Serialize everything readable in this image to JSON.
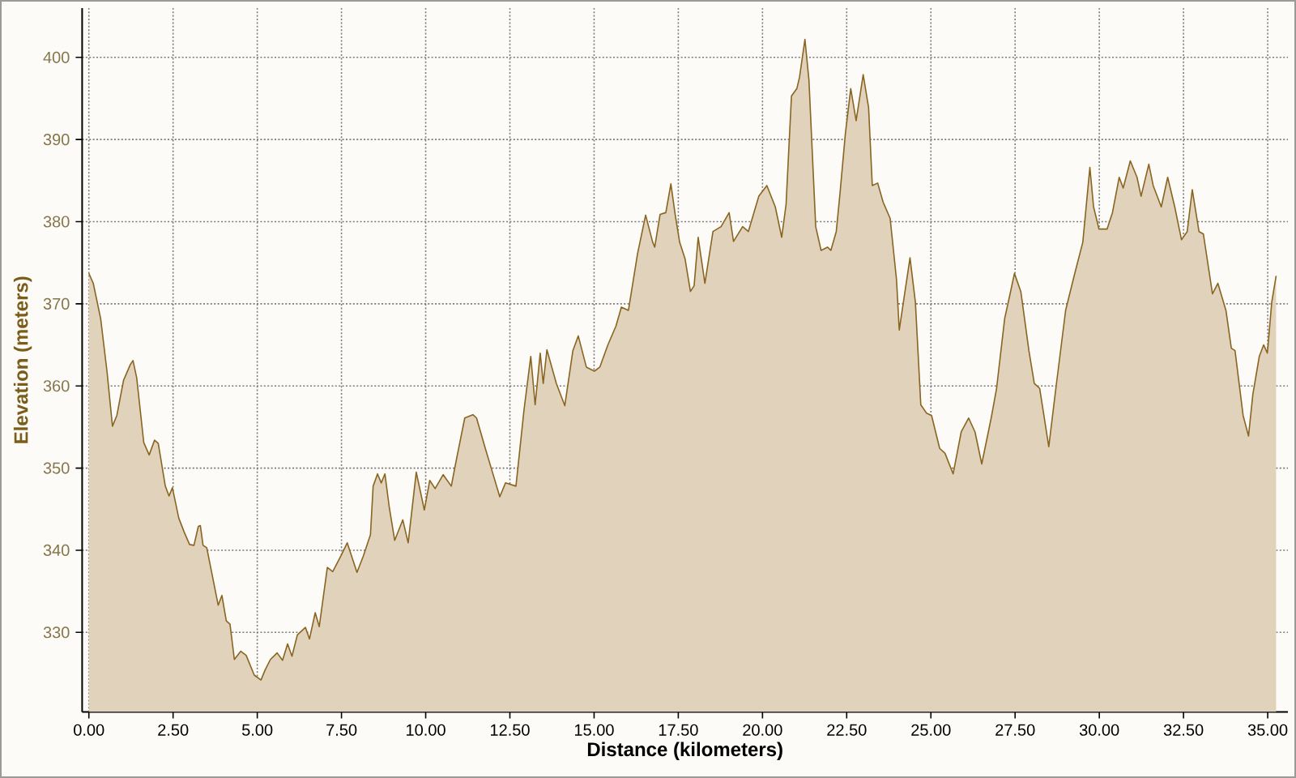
{
  "chart_data": {
    "type": "area",
    "xlabel": "Distance (kilometers)",
    "ylabel": "Elevation (meters)",
    "x": [
      0,
      0.13,
      0.35,
      0.54,
      0.7,
      0.83,
      1.03,
      1.23,
      1.31,
      1.42,
      1.63,
      1.79,
      1.95,
      2.06,
      2.27,
      2.38,
      2.48,
      2.67,
      2.83,
      2.99,
      3.12,
      3.25,
      3.31,
      3.39,
      3.5,
      3.68,
      3.84,
      3.95,
      4.08,
      4.19,
      4.32,
      4.51,
      4.67,
      4.91,
      5.11,
      5.23,
      5.39,
      5.59,
      5.75,
      5.9,
      6.03,
      6.19,
      6.43,
      6.55,
      6.72,
      6.84,
      7.08,
      7.24,
      7.48,
      7.67,
      7.96,
      8.15,
      8.28,
      8.36,
      8.44,
      8.57,
      8.68,
      8.79,
      8.92,
      9.08,
      9.32,
      9.48,
      9.72,
      9.96,
      10.12,
      10.28,
      10.52,
      10.76,
      10.92,
      11.16,
      11.4,
      11.51,
      11.77,
      11.96,
      12.2,
      12.37,
      12.68,
      12.92,
      13.12,
      13.25,
      13.4,
      13.49,
      13.6,
      13.88,
      14.13,
      14.37,
      14.53,
      14.77,
      15.01,
      15.17,
      15.41,
      15.65,
      15.81,
      16.02,
      16.29,
      16.53,
      16.74,
      16.8,
      16.96,
      17.13,
      17.28,
      17.41,
      17.54,
      17.7,
      17.86,
      17.97,
      18.09,
      18.29,
      18.53,
      18.77,
      19.01,
      19.14,
      19.41,
      19.58,
      19.89,
      20.13,
      20.38,
      20.57,
      20.7,
      20.86,
      21.02,
      21.1,
      21.26,
      21.38,
      21.58,
      21.74,
      21.93,
      22.03,
      22.19,
      22.3,
      22.46,
      22.62,
      22.78,
      22.99,
      23.15,
      23.26,
      23.42,
      23.58,
      23.79,
      23.98,
      24.06,
      24.22,
      24.38,
      24.54,
      24.7,
      24.87,
      25.02,
      25.26,
      25.42,
      25.66,
      25.9,
      26.12,
      26.31,
      26.51,
      26.79,
      26.95,
      27.19,
      27.35,
      27.48,
      27.67,
      27.91,
      28.07,
      28.23,
      28.5,
      28.71,
      29.0,
      29.24,
      29.51,
      29.72,
      29.83,
      29.99,
      30.23,
      30.39,
      30.59,
      30.71,
      30.92,
      31.12,
      31.24,
      31.47,
      31.6,
      31.84,
      32.03,
      32.24,
      32.44,
      32.61,
      32.76,
      32.96,
      33.09,
      33.36,
      33.52,
      33.76,
      33.92,
      34.03,
      34.27,
      34.43,
      34.56,
      34.75,
      34.88,
      34.99,
      35.12,
      35.25
    ],
    "series": [
      {
        "color": "#e0d2bb",
        "values": [
          373.7,
          372.5,
          368.2,
          361.7,
          355.1,
          356.4,
          360.7,
          362.6,
          363.1,
          361.0,
          353.1,
          351.6,
          353.4,
          353.0,
          347.8,
          346.6,
          347.6,
          343.9,
          342.2,
          340.7,
          340.6,
          342.9,
          343.0,
          340.6,
          340.3,
          336.6,
          333.3,
          334.5,
          331.4,
          331.0,
          326.7,
          327.7,
          327.2,
          324.8,
          324.2,
          325.4,
          326.7,
          327.5,
          326.6,
          328.6,
          327.1,
          329.7,
          330.6,
          329.2,
          332.4,
          330.7,
          337.9,
          337.4,
          339.3,
          340.9,
          337.3,
          339.3,
          340.9,
          341.9,
          347.8,
          349.3,
          348.2,
          349.3,
          345.2,
          341.2,
          343.7,
          340.9,
          349.5,
          344.9,
          348.5,
          347.5,
          349.2,
          347.8,
          351.2,
          356.1,
          356.5,
          356.1,
          352.4,
          349.8,
          346.5,
          348.2,
          347.8,
          357.1,
          363.6,
          357.7,
          364.0,
          360.3,
          364.4,
          360.3,
          357.6,
          364.3,
          366.1,
          362.3,
          361.8,
          362.3,
          365.0,
          367.3,
          369.6,
          369.2,
          376.1,
          380.8,
          377.5,
          376.9,
          380.9,
          381.1,
          384.6,
          380.8,
          377.5,
          375.5,
          371.5,
          372.2,
          378.1,
          372.5,
          378.8,
          379.4,
          381.1,
          377.6,
          379.4,
          378.8,
          383.1,
          384.4,
          381.8,
          378.1,
          382.1,
          395.3,
          396.2,
          397.6,
          402.2,
          397.2,
          379.4,
          376.5,
          376.9,
          376.5,
          378.8,
          383.4,
          390.7,
          396.2,
          392.3,
          397.9,
          393.9,
          384.4,
          384.7,
          382.4,
          380.4,
          372.9,
          366.8,
          371.2,
          375.6,
          370.2,
          357.7,
          356.7,
          356.4,
          352.4,
          351.8,
          349.3,
          354.4,
          356.1,
          354.4,
          350.5,
          356.1,
          359.7,
          368.2,
          371.2,
          373.7,
          371.5,
          364.3,
          360.3,
          359.7,
          352.6,
          359.7,
          369.2,
          373.2,
          377.5,
          386.6,
          381.8,
          379.1,
          379.1,
          381.1,
          385.4,
          384.1,
          387.4,
          385.4,
          383.1,
          387.0,
          384.4,
          381.8,
          385.4,
          381.8,
          377.8,
          378.8,
          383.9,
          378.8,
          378.5,
          371.2,
          372.5,
          369.2,
          364.6,
          364.3,
          356.4,
          353.9,
          359.0,
          363.6,
          365.0,
          364.0,
          370.2,
          373.4
        ]
      }
    ],
    "xlim": [
      -0.2,
      35.6
    ],
    "ylim": [
      320.3,
      406
    ],
    "xticks": [
      {
        "value": 0,
        "label": "0.00"
      },
      {
        "value": 2.5,
        "label": "2.50"
      },
      {
        "value": 5,
        "label": "5.00"
      },
      {
        "value": 7.5,
        "label": "7.50"
      },
      {
        "value": 10,
        "label": "10.00"
      },
      {
        "value": 12.5,
        "label": "12.50"
      },
      {
        "value": 15,
        "label": "15.00"
      },
      {
        "value": 17.5,
        "label": "17.50"
      },
      {
        "value": 20,
        "label": "20.00"
      },
      {
        "value": 22.5,
        "label": "22.50"
      },
      {
        "value": 25,
        "label": "25.00"
      },
      {
        "value": 27.5,
        "label": "27.50"
      },
      {
        "value": 30,
        "label": "30.00"
      },
      {
        "value": 32.5,
        "label": "32.50"
      },
      {
        "value": 35,
        "label": "35.00"
      }
    ],
    "yticks": [
      330,
      340,
      350,
      360,
      370,
      380,
      390,
      400
    ],
    "grid": true
  }
}
